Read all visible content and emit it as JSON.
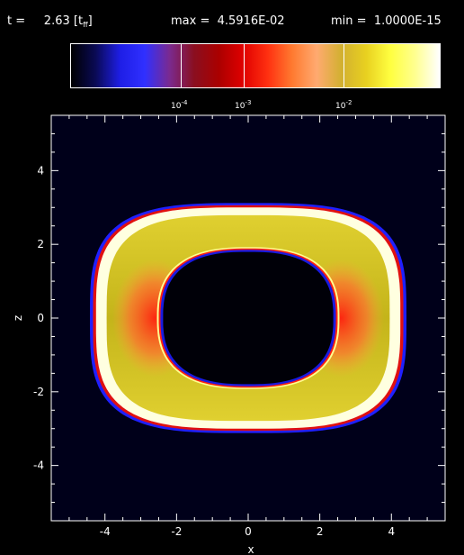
{
  "header": {
    "time_label": "t =",
    "time_value": "2.63",
    "time_unit_open": "[t",
    "time_unit_sub": "ff",
    "time_unit_close": "]",
    "max_label": "max =",
    "max_value": "4.5916E-02",
    "min_label": "min =",
    "min_value": "1.0000E-15"
  },
  "colorbar": {
    "scale": "log",
    "ticks": [
      {
        "base": "10",
        "exp": "-4",
        "value": 0.0001
      },
      {
        "base": "10",
        "exp": "-3",
        "value": 0.001
      },
      {
        "base": "10",
        "exp": "-2",
        "value": 0.01
      }
    ],
    "colors": [
      "#000000",
      "#0a0a55",
      "#1e1ee6",
      "#3030ff",
      "#7a2a90",
      "#8a0f20",
      "#aa0000",
      "#e00000",
      "#ff3010",
      "#ff7a30",
      "#ffaa70",
      "#d2b030",
      "#e8d020",
      "#ffff40",
      "#ffff90",
      "#ffffff"
    ]
  },
  "axes": {
    "xlabel": "x",
    "ylabel": "z",
    "xlim": [
      -5.5,
      5.5
    ],
    "ylim": [
      -5.5,
      5.5
    ],
    "xticks": [
      "-4",
      "-2",
      "0",
      "2",
      "4"
    ],
    "yticks": [
      "-4",
      "-2",
      "0",
      "2",
      "4"
    ],
    "xtick_values": [
      -4,
      -2,
      0,
      2,
      4
    ],
    "ytick_values": [
      -4,
      -2,
      0,
      2,
      4
    ]
  },
  "shell": {
    "outer_half_width": 4.25,
    "outer_half_height": 3.0,
    "inner_half_width": 2.45,
    "inner_half_height": 1.85,
    "shell_color": "#cbc21c",
    "rim_color": "#ffffe0",
    "hot_color": "#ff3a10",
    "inner_color": "#000000",
    "edge_color": "#1a1aff"
  }
}
